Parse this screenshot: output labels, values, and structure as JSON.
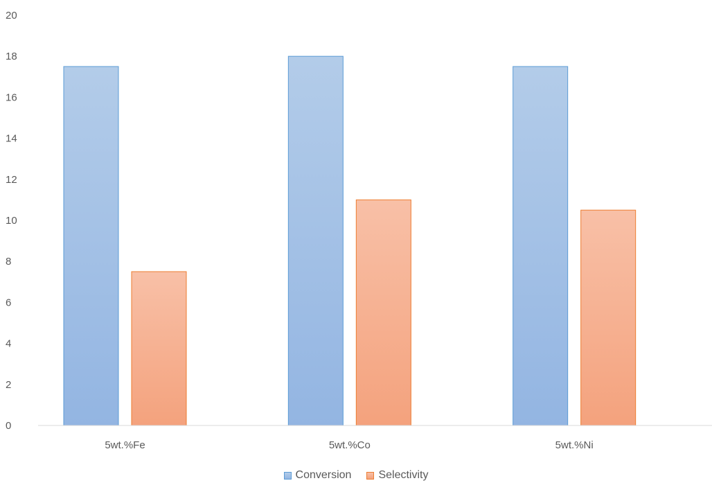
{
  "chart_data": {
    "type": "bar",
    "categories": [
      "5wt.%Fe",
      "5wt.%Co",
      "5wt.%Ni"
    ],
    "series": [
      {
        "name": "Conversion",
        "values": [
          17.5,
          18,
          17.5
        ],
        "color_top": "#b3cce9",
        "color_bottom": "#93b5e2",
        "stroke": "#5b9bd5"
      },
      {
        "name": "Selectivity",
        "values": [
          7.5,
          11,
          10.5
        ],
        "color_top": "#f8c0a7",
        "color_bottom": "#f4a27d",
        "stroke": "#ed7d31"
      }
    ],
    "y_ticks": [
      "0",
      "2",
      "4",
      "6",
      "8",
      "10",
      "12",
      "14",
      "16",
      "18",
      "20"
    ],
    "ylim": [
      0,
      20
    ],
    "grid": false,
    "legend_position": "bottom",
    "title": "",
    "xlabel": "",
    "ylabel": ""
  },
  "legend": {
    "conversion_label": "Conversion",
    "selectivity_label": "Selectivity"
  }
}
